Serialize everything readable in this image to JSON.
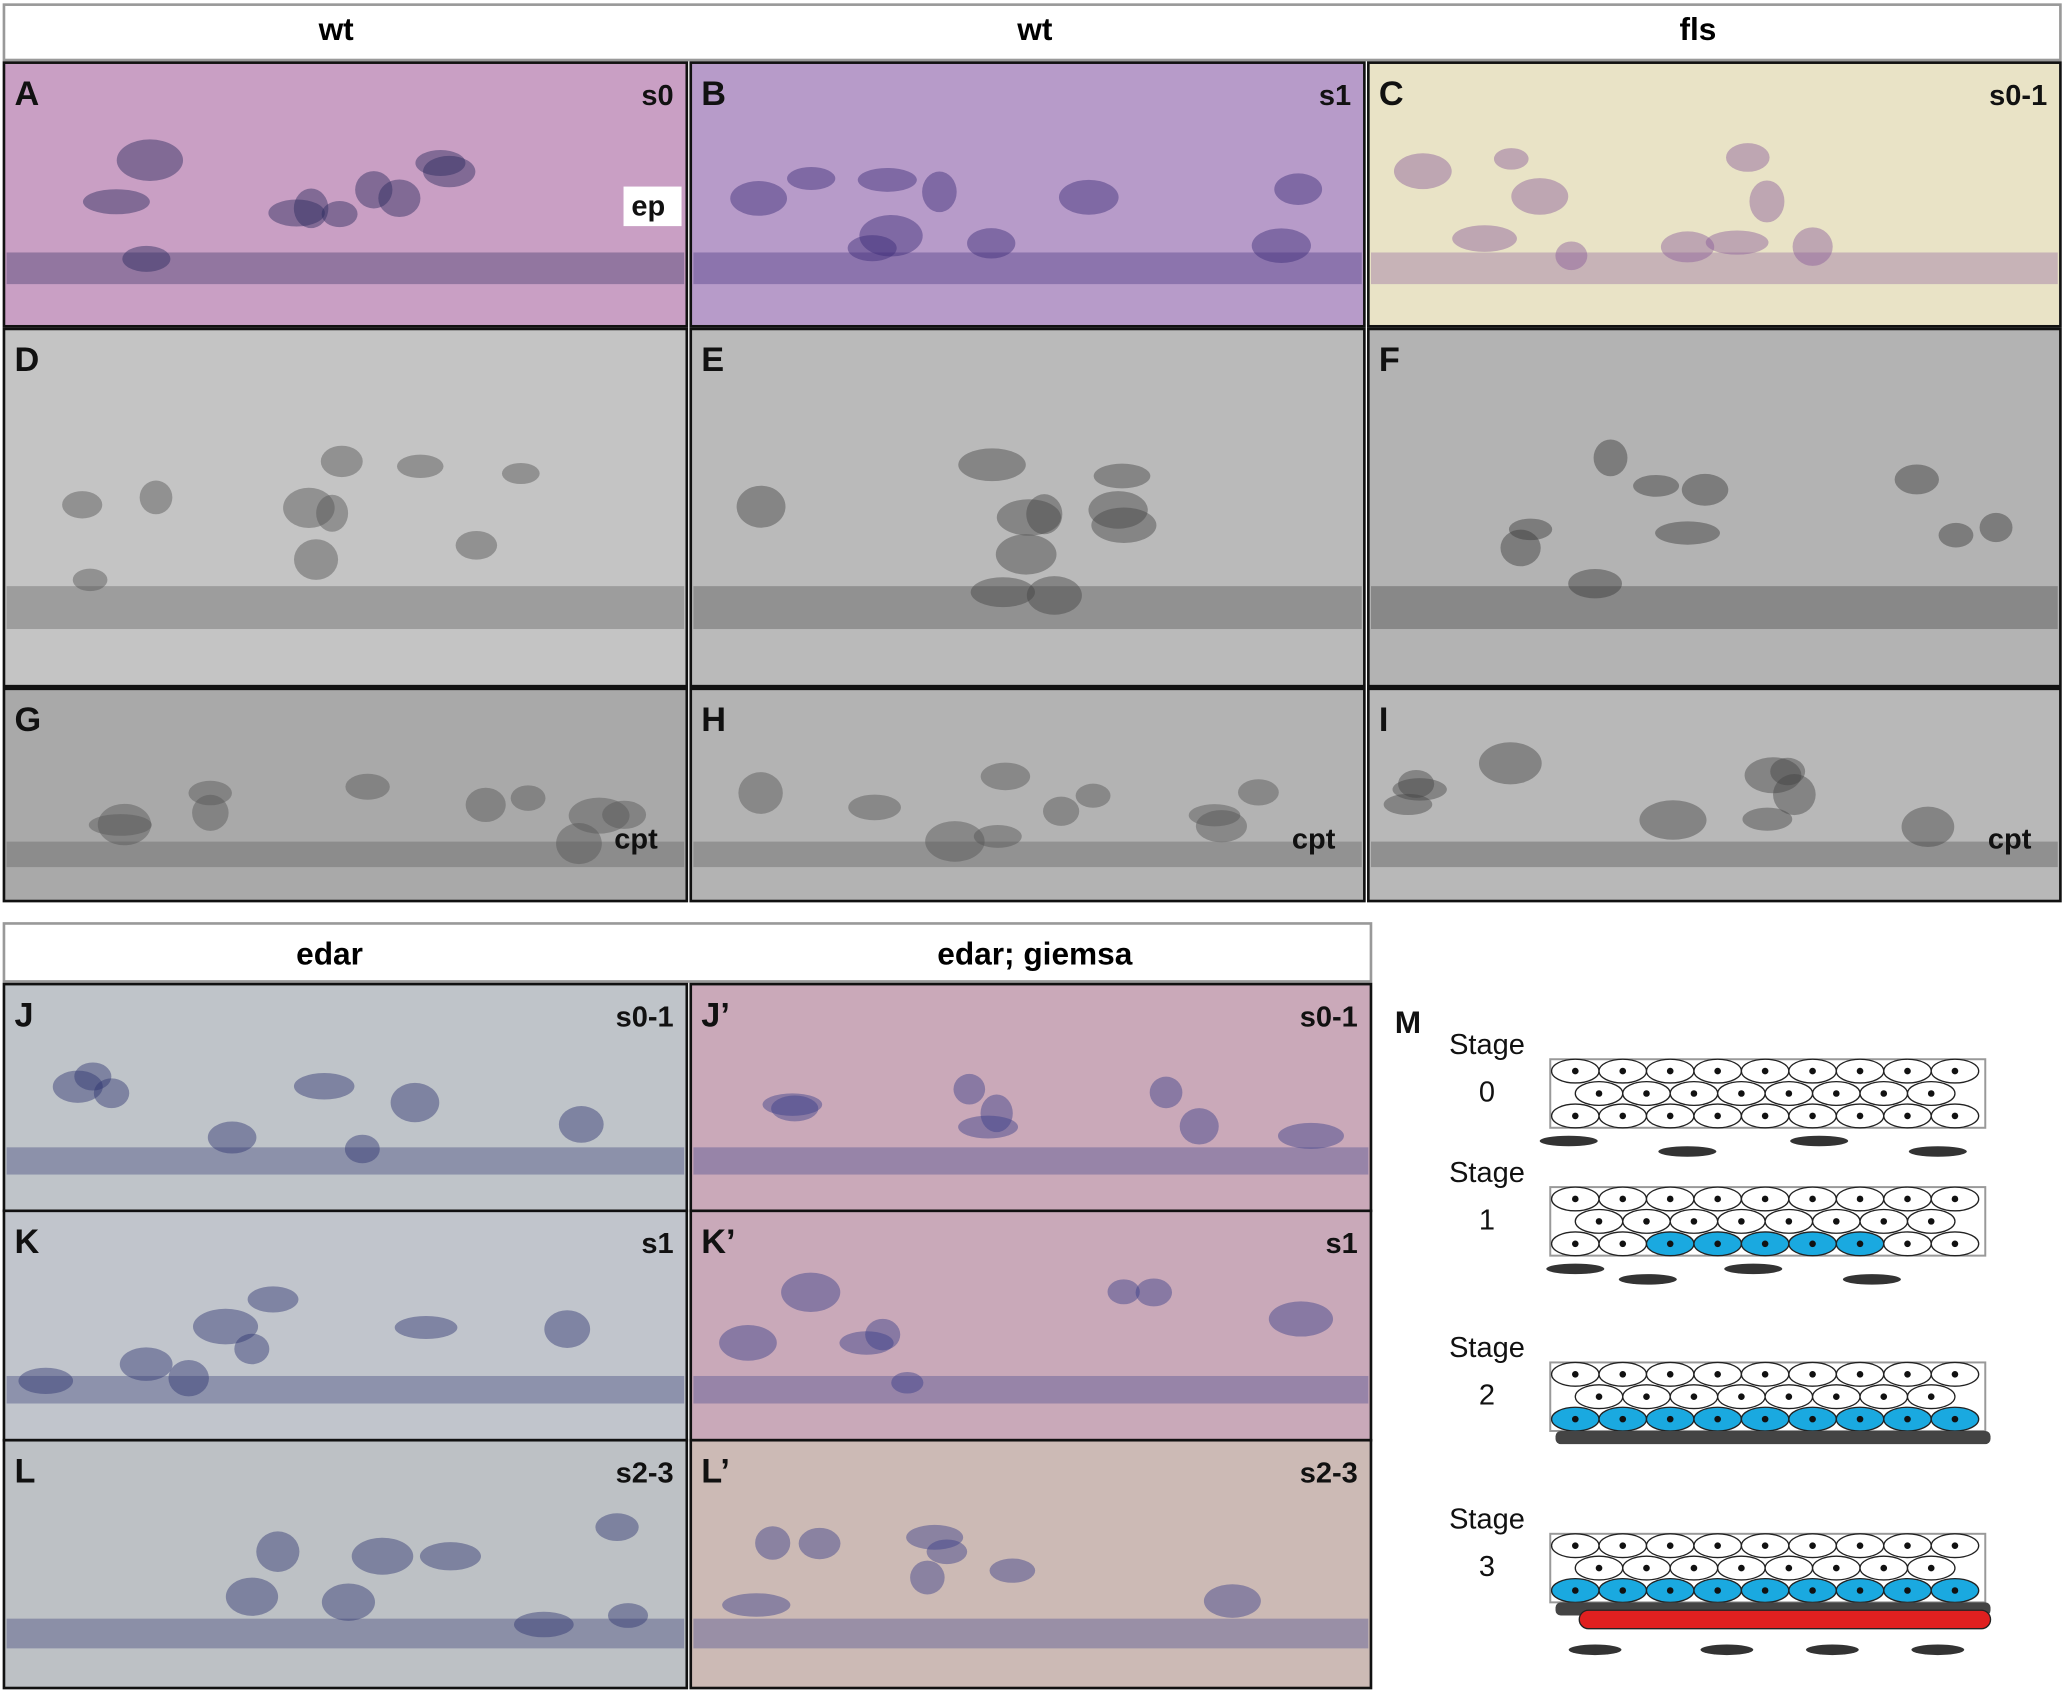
{
  "headers_top": [
    "wt",
    "wt",
    "fls"
  ],
  "headers_bottom": [
    "edar",
    "edar; giemsa"
  ],
  "panels": [
    {
      "label": "A",
      "tag": "s0",
      "note": "ep"
    },
    {
      "label": "B",
      "tag": "s1"
    },
    {
      "label": "C",
      "tag": "s0-1"
    },
    {
      "label": "D"
    },
    {
      "label": "E"
    },
    {
      "label": "F"
    },
    {
      "label": "G",
      "note": "cpt"
    },
    {
      "label": "H",
      "note": "cpt"
    },
    {
      "label": "I",
      "note": "cpt"
    },
    {
      "label": "J",
      "tag": "s0-1"
    },
    {
      "label": "J’",
      "tag": "s0-1"
    },
    {
      "label": "K",
      "tag": "s1"
    },
    {
      "label": "K’",
      "tag": "s1"
    },
    {
      "label": "L",
      "tag": "s2-3"
    },
    {
      "label": "L’",
      "tag": "s2-3"
    }
  ],
  "diagram": {
    "label": "M",
    "stages": [
      {
        "word": "Stage",
        "number": "0"
      },
      {
        "word": "Stage",
        "number": "1"
      },
      {
        "word": "Stage",
        "number": "2"
      },
      {
        "word": "Stage",
        "number": "3"
      }
    ]
  }
}
